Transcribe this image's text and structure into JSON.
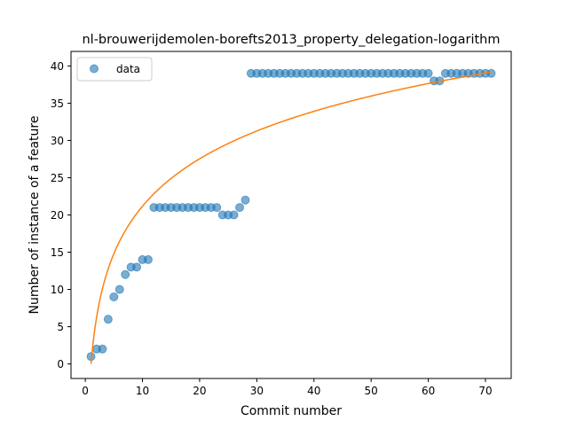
{
  "chart_data": {
    "type": "scatter",
    "title": "nl-brouwerijdemolen-borefts2013_property_delegation-logarithm",
    "xlabel": "Commit number",
    "ylabel": "Number of instance of a feature",
    "xlim": [
      -2.5,
      74.5
    ],
    "ylim": [
      -1.95,
      41.95
    ],
    "xticks": [
      0,
      10,
      20,
      30,
      40,
      50,
      60,
      70
    ],
    "yticks": [
      0,
      5,
      10,
      15,
      20,
      25,
      30,
      35,
      40
    ],
    "grid": false,
    "legend": {
      "placement": "top-left",
      "entries": [
        "data"
      ]
    },
    "colors": {
      "data": "#1f77b4",
      "fit": "#ff7f0e"
    },
    "series": [
      {
        "name": "data",
        "kind": "scatter",
        "x": [
          1,
          2,
          3,
          4,
          5,
          6,
          7,
          8,
          9,
          10,
          11,
          12,
          13,
          14,
          15,
          16,
          17,
          18,
          19,
          20,
          21,
          22,
          23,
          24,
          25,
          26,
          27,
          28,
          29,
          30,
          31,
          32,
          33,
          34,
          35,
          36,
          37,
          38,
          39,
          40,
          41,
          42,
          43,
          44,
          45,
          46,
          47,
          48,
          49,
          50,
          51,
          52,
          53,
          54,
          55,
          56,
          57,
          58,
          59,
          60,
          61,
          62,
          63,
          64,
          65,
          66,
          67,
          68,
          69,
          70,
          71
        ],
        "y": [
          1,
          2,
          2,
          6,
          9,
          10,
          12,
          13,
          13,
          14,
          14,
          21,
          21,
          21,
          21,
          21,
          21,
          21,
          21,
          21,
          21,
          21,
          21,
          20,
          20,
          20,
          21,
          22,
          39,
          39,
          39,
          39,
          39,
          39,
          39,
          39,
          39,
          39,
          39,
          39,
          39,
          39,
          39,
          39,
          39,
          39,
          39,
          39,
          39,
          39,
          39,
          39,
          39,
          39,
          39,
          39,
          39,
          39,
          39,
          39,
          38,
          38,
          39,
          39,
          39,
          39,
          39,
          39,
          39,
          39,
          39
        ]
      },
      {
        "kind": "line",
        "model": "logarithmic",
        "x": [
          1,
          2,
          5,
          10,
          20,
          30,
          40,
          50,
          60,
          71
        ],
        "y": [
          0.0,
          6.37,
          14.8,
          21.17,
          27.54,
          31.27,
          33.91,
          35.96,
          37.63,
          39.18
        ]
      }
    ]
  }
}
